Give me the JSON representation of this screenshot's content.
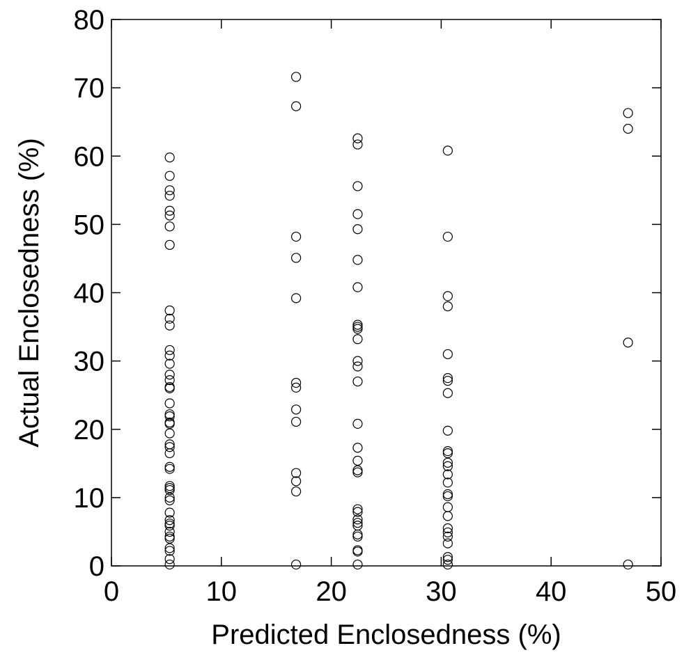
{
  "chart_data": {
    "type": "scatter",
    "xlabel": "Predicted Enclosedness (%)",
    "ylabel": "Actual Enclosedness (%)",
    "xlim": [
      0,
      50
    ],
    "ylim": [
      0,
      80
    ],
    "xticks": [
      0,
      10,
      20,
      30,
      40,
      50
    ],
    "yticks": [
      0,
      10,
      20,
      30,
      40,
      50,
      60,
      70,
      80
    ],
    "grid": false,
    "marker": "open-circle",
    "series": [
      {
        "points": [
          [
            5.3,
            59.8
          ],
          [
            5.3,
            57.1
          ],
          [
            5.3,
            55.0
          ],
          [
            5.3,
            54.2
          ],
          [
            5.3,
            52.0
          ],
          [
            5.3,
            51.3
          ],
          [
            5.3,
            49.7
          ],
          [
            5.3,
            47.0
          ],
          [
            5.3,
            37.4
          ],
          [
            5.3,
            36.2
          ],
          [
            5.3,
            35.2
          ],
          [
            5.3,
            31.6
          ],
          [
            5.3,
            30.8
          ],
          [
            5.3,
            29.6
          ],
          [
            5.3,
            28.0
          ],
          [
            5.3,
            27.2
          ],
          [
            5.3,
            26.2
          ],
          [
            5.3,
            26.0
          ],
          [
            5.3,
            23.8
          ],
          [
            5.3,
            22.2
          ],
          [
            5.3,
            21.9
          ],
          [
            5.3,
            21.0
          ],
          [
            5.3,
            20.8
          ],
          [
            5.3,
            19.4
          ],
          [
            5.3,
            17.8
          ],
          [
            5.3,
            17.4
          ],
          [
            5.3,
            16.5
          ],
          [
            5.3,
            14.5
          ],
          [
            5.3,
            14.2
          ],
          [
            5.3,
            11.7
          ],
          [
            5.3,
            11.4
          ],
          [
            5.3,
            11.1
          ],
          [
            5.3,
            10.0
          ],
          [
            5.3,
            9.6
          ],
          [
            5.3,
            7.8
          ],
          [
            5.3,
            6.7
          ],
          [
            5.3,
            6.2
          ],
          [
            5.3,
            5.9
          ],
          [
            5.3,
            5.0
          ],
          [
            5.3,
            4.3
          ],
          [
            5.3,
            4.0
          ],
          [
            5.3,
            2.6
          ],
          [
            5.3,
            2.2
          ],
          [
            5.3,
            1.0
          ],
          [
            5.3,
            0.2
          ],
          [
            16.8,
            71.6
          ],
          [
            16.8,
            67.3
          ],
          [
            16.8,
            48.2
          ],
          [
            16.8,
            45.1
          ],
          [
            16.8,
            39.2
          ],
          [
            16.8,
            26.8
          ],
          [
            16.8,
            26.1
          ],
          [
            16.8,
            22.9
          ],
          [
            16.8,
            21.1
          ],
          [
            16.8,
            13.6
          ],
          [
            16.8,
            12.4
          ],
          [
            16.8,
            10.9
          ],
          [
            16.8,
            0.2
          ],
          [
            22.4,
            62.6
          ],
          [
            22.4,
            61.7
          ],
          [
            22.4,
            55.6
          ],
          [
            22.4,
            51.5
          ],
          [
            22.4,
            49.3
          ],
          [
            22.4,
            44.8
          ],
          [
            22.4,
            40.8
          ],
          [
            22.4,
            35.3
          ],
          [
            22.4,
            35.0
          ],
          [
            22.4,
            34.7
          ],
          [
            22.4,
            33.2
          ],
          [
            22.4,
            30.0
          ],
          [
            22.4,
            29.2
          ],
          [
            22.4,
            27.0
          ],
          [
            22.4,
            20.8
          ],
          [
            22.4,
            17.3
          ],
          [
            22.4,
            15.4
          ],
          [
            22.4,
            14.0
          ],
          [
            22.4,
            13.7
          ],
          [
            22.4,
            8.3
          ],
          [
            22.4,
            7.9
          ],
          [
            22.4,
            6.8
          ],
          [
            22.4,
            6.3
          ],
          [
            22.4,
            5.9
          ],
          [
            22.4,
            4.6
          ],
          [
            22.4,
            4.3
          ],
          [
            22.4,
            2.3
          ],
          [
            22.4,
            2.1
          ],
          [
            22.4,
            0.2
          ],
          [
            30.6,
            60.8
          ],
          [
            30.6,
            48.2
          ],
          [
            30.6,
            39.5
          ],
          [
            30.6,
            38.0
          ],
          [
            30.6,
            31.0
          ],
          [
            30.6,
            27.5
          ],
          [
            30.6,
            27.1
          ],
          [
            30.6,
            25.3
          ],
          [
            30.6,
            19.8
          ],
          [
            30.6,
            16.8
          ],
          [
            30.6,
            16.5
          ],
          [
            30.6,
            15.1
          ],
          [
            30.6,
            14.6
          ],
          [
            30.6,
            13.4
          ],
          [
            30.6,
            12.2
          ],
          [
            30.6,
            10.5
          ],
          [
            30.6,
            10.2
          ],
          [
            30.6,
            8.6
          ],
          [
            30.6,
            7.3
          ],
          [
            30.6,
            5.5
          ],
          [
            30.6,
            4.9
          ],
          [
            30.6,
            4.3
          ],
          [
            30.6,
            3.3
          ],
          [
            30.6,
            1.3
          ],
          [
            30.6,
            0.9
          ],
          [
            30.6,
            0.2
          ],
          [
            47.0,
            66.3
          ],
          [
            47.0,
            64.0
          ],
          [
            47.0,
            32.7
          ],
          [
            47.0,
            0.2
          ]
        ]
      }
    ]
  }
}
